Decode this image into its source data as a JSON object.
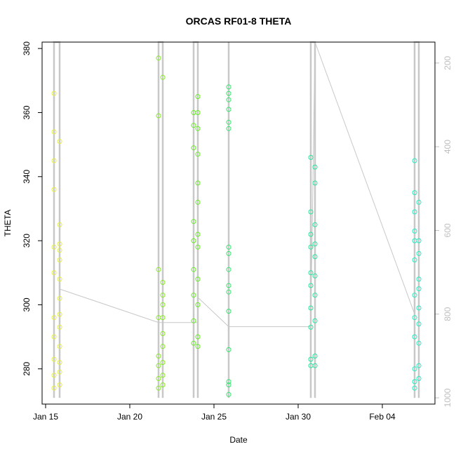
{
  "chart_data": {
    "type": "scatter",
    "title": "ORCAS RF01-8 THETA",
    "xlabel": "Date",
    "ylabel": "THETA",
    "x_ticks": [
      "Jan 15",
      "Jan 20",
      "Jan 25",
      "Jan 30",
      "Feb 04"
    ],
    "y_ticks": [
      "280",
      "300",
      "320",
      "340",
      "360",
      "380"
    ],
    "y2_ticks": [
      "200",
      "400",
      "600",
      "800",
      "1000"
    ],
    "xlim": [
      "2016-01-14T19:00",
      "2016-02-07T03:00"
    ],
    "ylim": [
      269,
      382
    ],
    "y2lim": [
      1015,
      150
    ],
    "grid": false,
    "legend": "none",
    "colors": {
      "trace": "#c8c8c8",
      "RF01": "#e8f040",
      "RF02": "#88ee22",
      "RF03": "#66ee22",
      "RF04": "#33e870",
      "RF05": "#22e89a",
      "RF06": "#22f0c0"
    },
    "series": [
      {
        "flight": "RF01",
        "theta_points": [
          [
            "2016-01-15T12:00",
            366
          ],
          [
            "2016-01-15T12:00",
            354
          ],
          [
            "2016-01-15T12:00",
            345
          ],
          [
            "2016-01-15T12:00",
            336
          ],
          [
            "2016-01-15T12:00",
            318
          ],
          [
            "2016-01-15T12:00",
            310
          ],
          [
            "2016-01-15T12:00",
            296
          ],
          [
            "2016-01-15T12:00",
            290
          ],
          [
            "2016-01-15T12:00",
            283
          ],
          [
            "2016-01-15T12:00",
            278
          ],
          [
            "2016-01-15T12:00",
            274
          ],
          [
            "2016-01-15T20:00",
            351
          ],
          [
            "2016-01-15T20:00",
            325
          ],
          [
            "2016-01-15T20:00",
            319
          ],
          [
            "2016-01-15T20:00",
            317
          ],
          [
            "2016-01-15T20:00",
            314
          ],
          [
            "2016-01-15T20:00",
            308
          ],
          [
            "2016-01-15T20:00",
            302
          ],
          [
            "2016-01-15T20:00",
            297
          ],
          [
            "2016-01-15T20:00",
            293
          ],
          [
            "2016-01-15T20:00",
            287
          ],
          [
            "2016-01-15T20:00",
            282
          ],
          [
            "2016-01-15T20:00",
            279
          ],
          [
            "2016-01-15T20:00",
            275
          ]
        ],
        "pressure_trace": [
          [
            "2016-01-15T12:00",
            1000
          ],
          [
            "2016-01-15T12:00",
            150
          ],
          [
            "2016-01-15T20:00",
            150
          ],
          [
            "2016-01-15T20:00",
            1000
          ]
        ]
      },
      {
        "flight": "RF02",
        "theta_points": [
          [
            "2016-01-21T17:00",
            377
          ],
          [
            "2016-01-21T17:00",
            359
          ],
          [
            "2016-01-21T17:00",
            311
          ],
          [
            "2016-01-21T17:00",
            296
          ],
          [
            "2016-01-21T17:00",
            284
          ],
          [
            "2016-01-21T17:00",
            281
          ],
          [
            "2016-01-21T17:00",
            277
          ],
          [
            "2016-01-21T17:00",
            274
          ],
          [
            "2016-01-21T23:00",
            371
          ],
          [
            "2016-01-21T23:00",
            307
          ],
          [
            "2016-01-21T23:00",
            303
          ],
          [
            "2016-01-21T23:00",
            300
          ],
          [
            "2016-01-21T23:00",
            296
          ],
          [
            "2016-01-21T23:00",
            291
          ],
          [
            "2016-01-21T23:00",
            287
          ],
          [
            "2016-01-21T23:00",
            282
          ],
          [
            "2016-01-21T23:00",
            278
          ],
          [
            "2016-01-21T23:00",
            275
          ]
        ],
        "pressure_trace": [
          [
            "2016-01-21T17:00",
            1000
          ],
          [
            "2016-01-21T17:00",
            150
          ],
          [
            "2016-01-21T23:00",
            150
          ],
          [
            "2016-01-21T23:00",
            1000
          ]
        ]
      },
      {
        "flight": "RF03",
        "theta_points": [
          [
            "2016-01-23T19:00",
            360
          ],
          [
            "2016-01-23T19:00",
            356
          ],
          [
            "2016-01-23T19:00",
            349
          ],
          [
            "2016-01-23T19:00",
            326
          ],
          [
            "2016-01-23T19:00",
            320
          ],
          [
            "2016-01-23T19:00",
            311
          ],
          [
            "2016-01-23T19:00",
            303
          ],
          [
            "2016-01-23T19:00",
            295
          ],
          [
            "2016-01-23T19:00",
            288
          ],
          [
            "2016-01-24T01:00",
            365
          ],
          [
            "2016-01-24T01:00",
            360
          ],
          [
            "2016-01-24T01:00",
            355
          ],
          [
            "2016-01-24T01:00",
            347
          ],
          [
            "2016-01-24T01:00",
            338
          ],
          [
            "2016-01-24T01:00",
            332
          ],
          [
            "2016-01-24T01:00",
            322
          ],
          [
            "2016-01-24T01:00",
            318
          ],
          [
            "2016-01-24T01:00",
            308
          ],
          [
            "2016-01-24T01:00",
            300
          ],
          [
            "2016-01-24T01:00",
            290
          ],
          [
            "2016-01-24T01:00",
            287
          ]
        ],
        "pressure_trace": [
          [
            "2016-01-23T19:00",
            1000
          ],
          [
            "2016-01-23T19:00",
            150
          ],
          [
            "2016-01-24T01:00",
            150
          ],
          [
            "2016-01-24T01:00",
            1000
          ]
        ]
      },
      {
        "flight": "RF04",
        "theta_points": [
          [
            "2016-01-25T21:00",
            368
          ],
          [
            "2016-01-25T21:00",
            366
          ],
          [
            "2016-01-25T21:00",
            364
          ],
          [
            "2016-01-25T21:00",
            361
          ],
          [
            "2016-01-25T21:00",
            357
          ],
          [
            "2016-01-25T21:00",
            355
          ],
          [
            "2016-01-25T21:00",
            318
          ],
          [
            "2016-01-25T21:00",
            316
          ],
          [
            "2016-01-25T21:00",
            311
          ],
          [
            "2016-01-25T21:00",
            306
          ],
          [
            "2016-01-25T21:00",
            304
          ],
          [
            "2016-01-25T21:00",
            298
          ],
          [
            "2016-01-25T21:00",
            286
          ],
          [
            "2016-01-25T21:00",
            276
          ],
          [
            "2016-01-25T21:00",
            275
          ],
          [
            "2016-01-25T21:00",
            272
          ]
        ],
        "pressure_trace": [
          [
            "2016-01-25T21:00",
            1000
          ],
          [
            "2016-01-25T21:00",
            150
          ]
        ]
      },
      {
        "flight": "RF05",
        "theta_points": [
          [
            "2016-01-30T18:00",
            346
          ],
          [
            "2016-01-30T18:00",
            329
          ],
          [
            "2016-01-30T18:00",
            322
          ],
          [
            "2016-01-30T18:00",
            318
          ],
          [
            "2016-01-30T18:00",
            310
          ],
          [
            "2016-01-30T18:00",
            306
          ],
          [
            "2016-01-30T18:00",
            299
          ],
          [
            "2016-01-30T18:00",
            293
          ],
          [
            "2016-01-30T18:00",
            283
          ],
          [
            "2016-01-30T18:00",
            281
          ],
          [
            "2016-01-31T00:00",
            343
          ],
          [
            "2016-01-31T00:00",
            338
          ],
          [
            "2016-01-31T00:00",
            325
          ],
          [
            "2016-01-31T00:00",
            319
          ],
          [
            "2016-01-31T00:00",
            315
          ],
          [
            "2016-01-31T00:00",
            309
          ],
          [
            "2016-01-31T00:00",
            303
          ],
          [
            "2016-01-31T00:00",
            295
          ],
          [
            "2016-01-31T00:00",
            284
          ],
          [
            "2016-01-31T00:00",
            281
          ]
        ],
        "pressure_trace": [
          [
            "2016-01-30T18:00",
            1000
          ],
          [
            "2016-01-30T18:00",
            150
          ],
          [
            "2016-01-31T00:00",
            150
          ],
          [
            "2016-01-31T00:00",
            1000
          ]
        ]
      },
      {
        "flight": "RF06",
        "theta_points": [
          [
            "2016-02-05T22:00",
            345
          ],
          [
            "2016-02-05T22:00",
            335
          ],
          [
            "2016-02-05T22:00",
            329
          ],
          [
            "2016-02-05T22:00",
            323
          ],
          [
            "2016-02-05T22:00",
            320
          ],
          [
            "2016-02-05T22:00",
            314
          ],
          [
            "2016-02-05T22:00",
            303
          ],
          [
            "2016-02-05T22:00",
            296
          ],
          [
            "2016-02-05T22:00",
            290
          ],
          [
            "2016-02-05T22:00",
            280
          ],
          [
            "2016-02-05T22:00",
            276
          ],
          [
            "2016-02-05T22:00",
            274
          ],
          [
            "2016-02-06T04:00",
            332
          ],
          [
            "2016-02-06T04:00",
            320
          ],
          [
            "2016-02-06T04:00",
            316
          ],
          [
            "2016-02-06T04:00",
            308
          ],
          [
            "2016-02-06T04:00",
            305
          ],
          [
            "2016-02-06T04:00",
            299
          ],
          [
            "2016-02-06T04:00",
            294
          ],
          [
            "2016-02-06T04:00",
            288
          ],
          [
            "2016-02-06T04:00",
            281
          ],
          [
            "2016-02-06T04:00",
            277
          ]
        ],
        "pressure_trace": [
          [
            "2016-02-05T22:00",
            1000
          ],
          [
            "2016-02-05T22:00",
            150
          ],
          [
            "2016-02-06T04:00",
            150
          ],
          [
            "2016-02-06T04:00",
            1000
          ]
        ]
      }
    ],
    "ferry_trace": [
      [
        "2016-01-15T20:00",
        740
      ],
      [
        "2016-01-21T17:00",
        820
      ],
      [
        "2016-01-24T01:00",
        820
      ],
      [
        "2016-01-24T01:00",
        760
      ],
      [
        "2016-01-25T21:00",
        830
      ],
      [
        "2016-01-30T18:00",
        830
      ],
      [
        "2016-01-31T00:00",
        130
      ],
      [
        "2016-02-05T22:00",
        800
      ]
    ]
  }
}
